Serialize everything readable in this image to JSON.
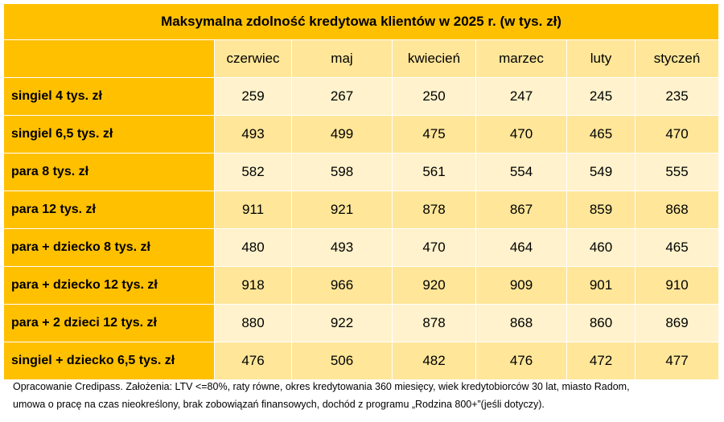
{
  "table": {
    "title": "Maksymalna zdolność kredytowa klientów w 2025 r. (w tys. zł)",
    "columns": [
      "czerwiec",
      "maj",
      "kwiecień",
      "marzec",
      "luty",
      "styczeń"
    ],
    "rows": [
      {
        "label": "singiel 4 tys. zł",
        "values": [
          "259",
          "267",
          "250",
          "247",
          "245",
          "235"
        ]
      },
      {
        "label": "singiel 6,5 tys. zł",
        "values": [
          "493",
          "499",
          "475",
          "470",
          "465",
          "470"
        ]
      },
      {
        "label": "para 8 tys. zł",
        "values": [
          "582",
          "598",
          "561",
          "554",
          "549",
          "555"
        ]
      },
      {
        "label": "para 12 tys. zł",
        "values": [
          "911",
          "921",
          "878",
          "867",
          "859",
          "868"
        ]
      },
      {
        "label": "para + dziecko 8 tys. zł",
        "values": [
          "480",
          "493",
          "470",
          "464",
          "460",
          "465"
        ]
      },
      {
        "label": "para + dziecko 12 tys. zł",
        "values": [
          "918",
          "966",
          "920",
          "909",
          "901",
          "910"
        ]
      },
      {
        "label": "para + 2 dzieci 12 tys. zł",
        "values": [
          "880",
          "922",
          "878",
          "868",
          "860",
          "869"
        ]
      },
      {
        "label": "singiel + dziecko 6,5 tys. zł",
        "values": [
          "476",
          "506",
          "482",
          "476",
          "472",
          "477"
        ]
      }
    ]
  },
  "footnote": {
    "line1": "Opracowanie Credipass. Założenia: LTV <=80%, raty równe, okres kredytowania 360 miesięcy, wiek kredytobiorców 30 lat, miasto Radom,",
    "line2": "umowa o pracę na czas nieokreślony, brak zobowiązań finansowych,  dochód z programu „Rodzina 800+”(jeśli dotyczy)."
  },
  "colors": {
    "header": "#ffc000",
    "band_dark": "#ffe699",
    "band_light": "#fff2cc"
  }
}
